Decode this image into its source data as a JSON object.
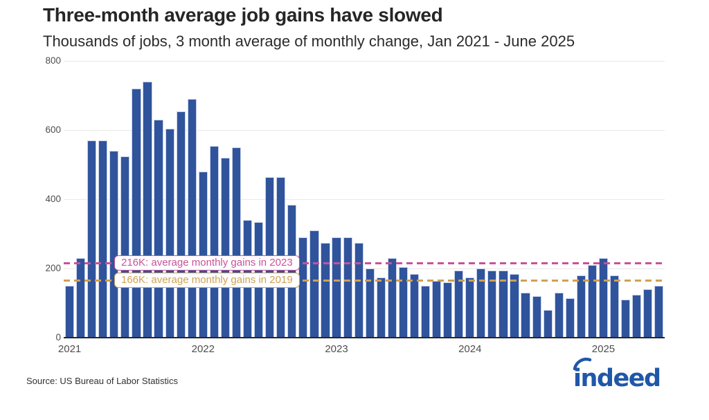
{
  "header": {
    "title": "Three-month average job gains have slowed",
    "subtitle": "Thousands of jobs, 3 month average of monthly change, Jan 2021 - June 2025"
  },
  "chart_data": {
    "type": "bar",
    "title": "Three-month average job gains have slowed",
    "subtitle": "Thousands of jobs, 3 month average of monthly change, Jan 2021 - June 2025",
    "unit": "thousands of jobs",
    "categories": [
      "Jan 2021",
      "Feb 2021",
      "Mar 2021",
      "Apr 2021",
      "May 2021",
      "Jun 2021",
      "Jul 2021",
      "Aug 2021",
      "Sep 2021",
      "Oct 2021",
      "Nov 2021",
      "Dec 2021",
      "Jan 2022",
      "Feb 2022",
      "Mar 2022",
      "Apr 2022",
      "May 2022",
      "Jun 2022",
      "Jul 2022",
      "Aug 2022",
      "Sep 2022",
      "Oct 2022",
      "Nov 2022",
      "Dec 2022",
      "Jan 2023",
      "Feb 2023",
      "Mar 2023",
      "Apr 2023",
      "May 2023",
      "Jun 2023",
      "Jul 2023",
      "Aug 2023",
      "Sep 2023",
      "Oct 2023",
      "Nov 2023",
      "Dec 2023",
      "Jan 2024",
      "Feb 2024",
      "Mar 2024",
      "Apr 2024",
      "May 2024",
      "Jun 2024",
      "Jul 2024",
      "Aug 2024",
      "Sep 2024",
      "Oct 2024",
      "Nov 2024",
      "Dec 2024",
      "Jan 2025",
      "Feb 2025",
      "Mar 2025",
      "Apr 2025",
      "May 2025",
      "Jun 2025"
    ],
    "values": [
      150,
      230,
      570,
      570,
      540,
      525,
      720,
      740,
      630,
      605,
      655,
      690,
      480,
      555,
      520,
      550,
      340,
      335,
      465,
      465,
      385,
      290,
      310,
      275,
      290,
      290,
      275,
      200,
      175,
      230,
      205,
      185,
      150,
      165,
      160,
      195,
      175,
      200,
      195,
      195,
      185,
      130,
      120,
      80,
      130,
      115,
      180,
      210,
      230,
      180,
      110,
      125,
      140,
      150
    ],
    "xlabel": "",
    "ylabel": "",
    "ylim": [
      0,
      800
    ],
    "yticks": [
      0,
      200,
      400,
      600,
      800
    ],
    "xtick_labels": [
      "2021",
      "2022",
      "2023",
      "2024",
      "2025"
    ],
    "xtick_indices": [
      0,
      12,
      24,
      36,
      48
    ],
    "grid": true,
    "legend": false,
    "bar_color": "#30549c",
    "bar_edge_color": "#c6d0ea",
    "reference_lines": [
      {
        "value": 216,
        "label": "216K: average monthly gains in 2023",
        "color": "#c9519a"
      },
      {
        "value": 166,
        "label": "166K: average monthly gains in 2019",
        "color": "#cfa053"
      }
    ]
  },
  "footer": {
    "source": "Source: US Bureau of Labor Statistics",
    "logo_text": "indeed",
    "logo_color": "#2057a8"
  }
}
